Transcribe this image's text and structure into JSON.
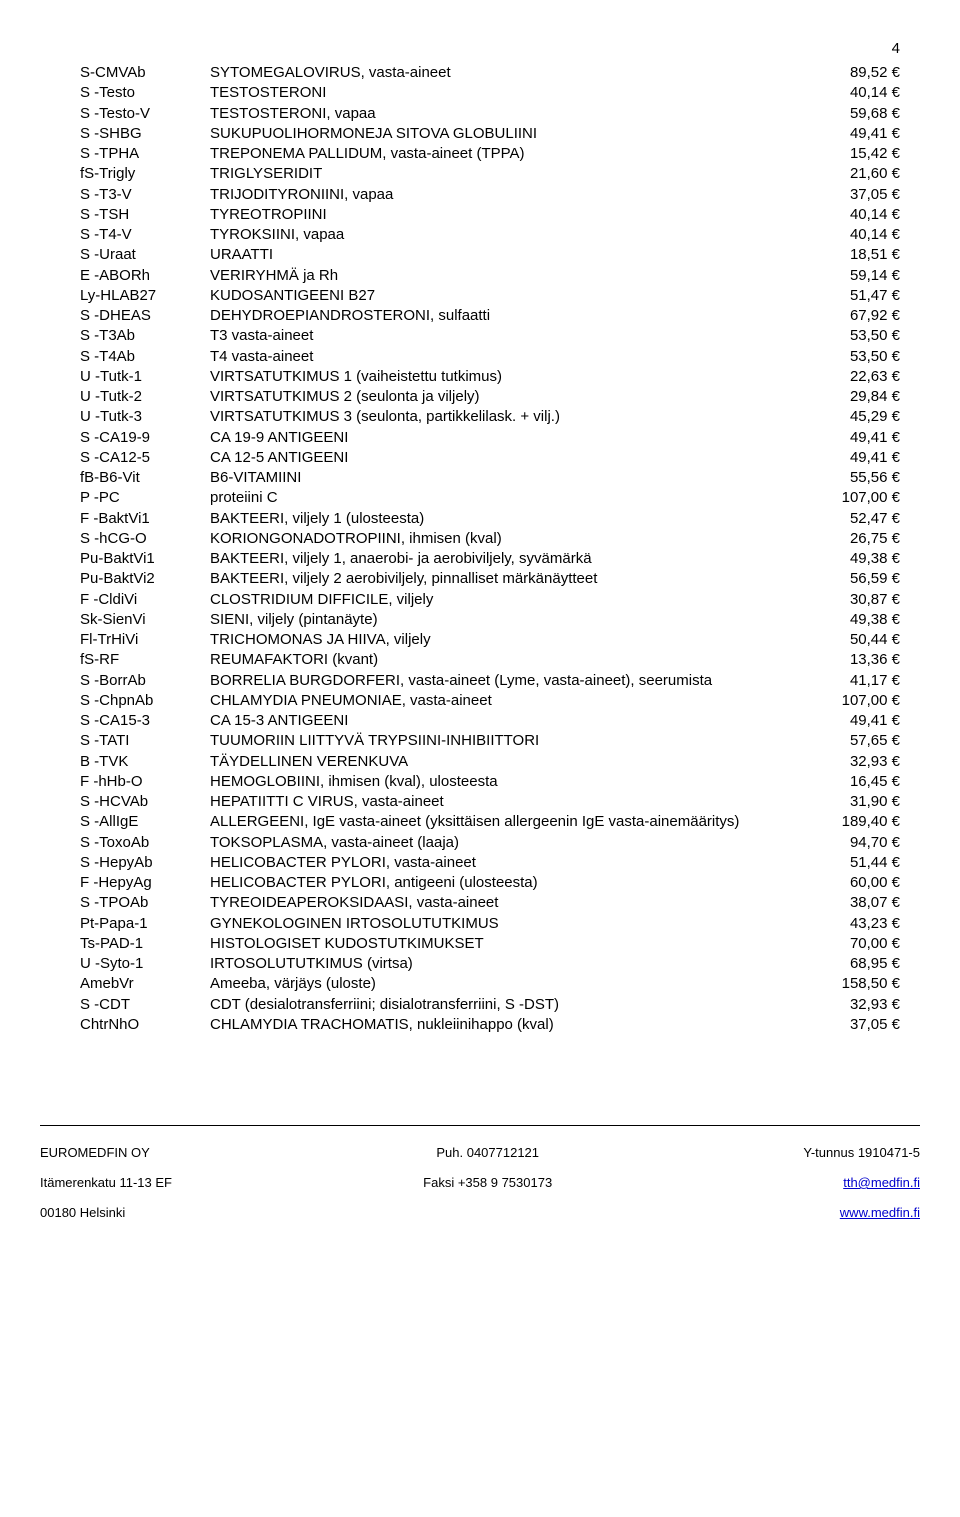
{
  "page_number": "4",
  "rows": [
    {
      "code": "S-CMVAb",
      "desc": "SYTOMEGALOVIRUS, vasta-aineet",
      "price": "89,52 €"
    },
    {
      "code": "S -Testo",
      "desc": "TESTOSTERONI",
      "price": "40,14 €"
    },
    {
      "code": "S -Testo-V",
      "desc": "TESTOSTERONI, vapaa",
      "price": "59,68 €"
    },
    {
      "code": "S -SHBG",
      "desc": "SUKUPUOLIHORMONEJA SITOVA GLOBULIINI",
      "price": "49,41 €"
    },
    {
      "code": "S -TPHA",
      "desc": "TREPONEMA PALLIDUM, vasta-aineet (TPPA)",
      "price": "15,42 €"
    },
    {
      "code": "fS-Trigly",
      "desc": "TRIGLYSERIDIT",
      "price": "21,60 €"
    },
    {
      "code": "S -T3-V",
      "desc": "TRIJODITYRONIINI, vapaa",
      "price": "37,05 €"
    },
    {
      "code": "S -TSH",
      "desc": "TYREOTROPIINI",
      "price": "40,14 €"
    },
    {
      "code": "S -T4-V",
      "desc": "TYROKSIINI, vapaa",
      "price": "40,14 €"
    },
    {
      "code": "S -Uraat",
      "desc": "URAATTI",
      "price": "18,51 €"
    },
    {
      "code": "E -ABORh",
      "desc": "VERIRYHMÄ ja Rh",
      "price": "59,14 €"
    },
    {
      "code": "Ly-HLAB27",
      "desc": "KUDOSANTIGEENI B27",
      "price": "51,47 €"
    },
    {
      "code": "S -DHEAS",
      "desc": "DEHYDROEPIANDROSTERONI, sulfaatti",
      "price": "67,92 €"
    },
    {
      "code": "S -T3Ab",
      "desc": "T3 vasta-aineet",
      "price": "53,50 €"
    },
    {
      "code": "S -T4Ab",
      "desc": "T4 vasta-aineet",
      "price": "53,50 €"
    },
    {
      "code": "U -Tutk-1",
      "desc": "VIRTSATUTKIMUS 1 (vaiheistettu tutkimus)",
      "price": "22,63 €"
    },
    {
      "code": "U -Tutk-2",
      "desc": "VIRTSATUTKIMUS 2 (seulonta ja viljely)",
      "price": "29,84 €"
    },
    {
      "code": "U -Tutk-3",
      "desc": "VIRTSATUTKIMUS 3 (seulonta, partikkelilask. + vilj.)",
      "price": "45,29 €"
    },
    {
      "code": "S -CA19-9",
      "desc": "CA 19-9 ANTIGEENI",
      "price": "49,41 €"
    },
    {
      "code": "S -CA12-5",
      "desc": "CA 12-5 ANTIGEENI",
      "price": "49,41 €"
    },
    {
      "code": "fB-B6-Vit",
      "desc": "B6-VITAMIINI",
      "price": "55,56 €"
    },
    {
      "code": "P -PC",
      "desc": "proteiini C",
      "price": "107,00 €"
    },
    {
      "code": "F -BaktVi1",
      "desc": "BAKTEERI, viljely 1 (ulosteesta)",
      "price": "52,47 €"
    },
    {
      "code": "S -hCG-O",
      "desc": "KORIONGONADOTROPIINI, ihmisen (kval)",
      "price": "26,75 €"
    },
    {
      "code": "Pu-BaktVi1",
      "desc": "BAKTEERI, viljely 1, anaerobi- ja aerobiviljely, syvämärkä",
      "price": "49,38 €"
    },
    {
      "code": "Pu-BaktVi2",
      "desc": "BAKTEERI, viljely 2 aerobiviljely, pinnalliset märkänäytteet",
      "price": "56,59 €"
    },
    {
      "code": "F -CldiVi",
      "desc": "CLOSTRIDIUM DIFFICILE, viljely",
      "price": "30,87 €"
    },
    {
      "code": "Sk-SienVi",
      "desc": "SIENI, viljely (pintanäyte)",
      "price": "49,38 €"
    },
    {
      "code": "Fl-TrHiVi",
      "desc": "TRICHOMONAS JA HIIVA, viljely",
      "price": "50,44 €"
    },
    {
      "code": "fS-RF",
      "desc": "REUMAFAKTORI (kvant)",
      "price": "13,36 €"
    },
    {
      "code": "S -BorrAb",
      "desc": "BORRELIA BURGDORFERI, vasta-aineet (Lyme, vasta-aineet), seerumista",
      "price": "41,17 €"
    },
    {
      "code": "S -ChpnAb",
      "desc": "CHLAMYDIA PNEUMONIAE, vasta-aineet",
      "price": "107,00 €"
    },
    {
      "code": "S -CA15-3",
      "desc": "CA 15-3 ANTIGEENI",
      "price": "49,41 €"
    },
    {
      "code": "S -TATI",
      "desc": "TUUMORIIN LIITTYVÄ TRYPSIINI-INHIBIITTORI",
      "price": "57,65 €"
    },
    {
      "code": "B -TVK",
      "desc": "TÄYDELLINEN VERENKUVA",
      "price": "32,93 €"
    },
    {
      "code": "F -hHb-O",
      "desc": "HEMOGLOBIINI, ihmisen (kval), ulosteesta",
      "price": "16,45 €"
    },
    {
      "code": "S -HCVAb",
      "desc": "HEPATIITTI C VIRUS, vasta-aineet",
      "price": "31,90 €"
    },
    {
      "code": "S -AllIgE",
      "desc": "ALLERGEENI, IgE vasta-aineet (yksittäisen allergeenin IgE vasta-ainemääritys)",
      "price": "189,40 €"
    },
    {
      "code": "S -ToxoAb",
      "desc": "TOKSOPLASMA, vasta-aineet (laaja)",
      "price": "94,70 €"
    },
    {
      "code": "S -HepyAb",
      "desc": "HELICOBACTER PYLORI, vasta-aineet",
      "price": "51,44 €"
    },
    {
      "code": "F -HepyAg",
      "desc": "HELICOBACTER PYLORI, antigeeni (ulosteesta)",
      "price": "60,00 €"
    },
    {
      "code": "S -TPOAb",
      "desc": "TYREOIDEAPEROKSIDAASI, vasta-aineet",
      "price": "38,07 €"
    },
    {
      "code": "Pt-Papa-1",
      "desc": "GYNEKOLOGINEN IRTOSOLUTUTKIMUS",
      "price": "43,23 €"
    },
    {
      "code": "Ts-PAD-1",
      "desc": "HISTOLOGISET KUDOSTUTKIMUKSET",
      "price": "70,00 €"
    },
    {
      "code": "U -Syto-1",
      "desc": "IRTOSOLUTUTKIMUS (virtsa)",
      "price": "68,95 €"
    },
    {
      "code": "AmebVr",
      "desc": "Ameeba, värjäys (uloste)",
      "price": "158,50 €"
    },
    {
      "code": "S -CDT",
      "desc": "CDT (desialotransferriini; disialotransferriini, S -DST)",
      "price": "32,93 €"
    },
    {
      "code": "ChtrNhO",
      "desc": "CHLAMYDIA TRACHOMATIS, nukleiinihappo (kval)",
      "price": "37,05 €"
    }
  ],
  "footer": {
    "left": {
      "l1": "EUROMEDFIN OY",
      "l2": "Itämerenkatu 11-13 EF",
      "l3": "00180 Helsinki"
    },
    "center": {
      "l1": "Puh. 0407712121",
      "l2": "Faksi +358 9 7530173"
    },
    "right": {
      "l1": "Y-tunnus 1910471-5",
      "l2": "tth@medfin.fi",
      "l3": "www.medfin.fi"
    }
  }
}
